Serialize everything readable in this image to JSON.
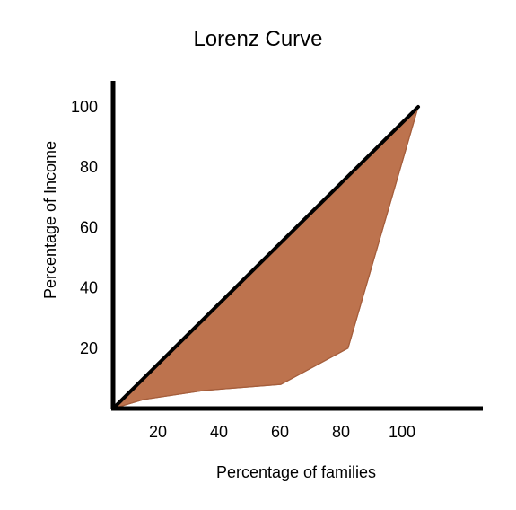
{
  "chart_data": {
    "type": "area",
    "title": "Lorenz Curve",
    "xlabel": "Percentage of families",
    "ylabel": "Percentage of Income",
    "x_ticks": [
      20,
      40,
      60,
      80,
      100
    ],
    "y_ticks": [
      20,
      40,
      60,
      80,
      100
    ],
    "xlim": [
      0,
      100
    ],
    "ylim": [
      0,
      100
    ],
    "grid": false,
    "legend": "none",
    "equality_line": {
      "x": [
        0,
        100
      ],
      "y": [
        0,
        100
      ],
      "color": "#000000"
    },
    "lorenz_curve": {
      "x": [
        0,
        10,
        30,
        55,
        77,
        100
      ],
      "y": [
        0,
        3,
        6,
        8,
        20,
        100
      ]
    },
    "fill_color": "#bd734e",
    "edge_color": "#a55e3c"
  }
}
